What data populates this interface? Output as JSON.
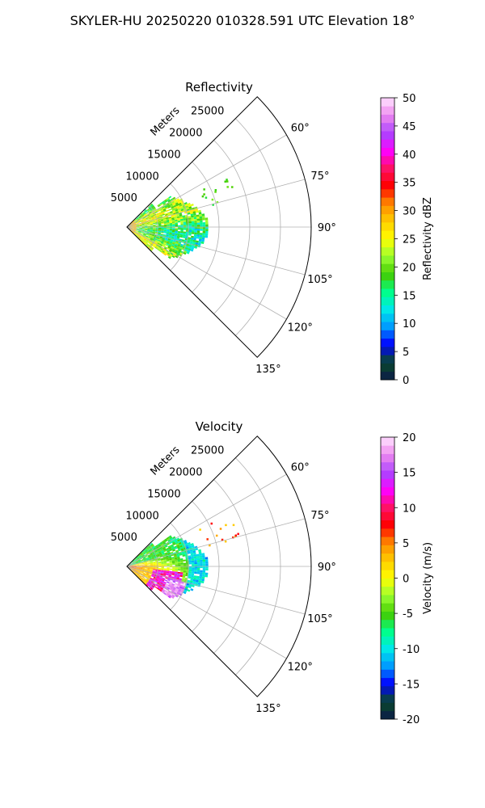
{
  "figure": {
    "suptitle": "SKYLER-HU  20250220  010328.591 UTC Elevation 18°"
  },
  "chart_data": [
    {
      "type": "heatmap",
      "subtype": "polar-sector",
      "title": "Reflectivity",
      "range_label": "Meters",
      "range_ticks": [
        5000,
        10000,
        15000,
        20000,
        25000
      ],
      "range_max": 30000,
      "azimuth_ticks": [
        "60°",
        "75°",
        "90°",
        "105°",
        "120°",
        "135°"
      ],
      "azimuth_range_deg": [
        45,
        135
      ],
      "colorbar": {
        "label": "Reflectivity dBZ",
        "ticks": [
          0,
          5,
          10,
          15,
          20,
          25,
          30,
          35,
          40,
          45,
          50
        ],
        "range": [
          0,
          50
        ]
      },
      "colormap": [
        "#0b1a4a",
        "#0a4a2a",
        "#0000ff",
        "#0099ff",
        "#00e8e8",
        "#00ff88",
        "#44cc00",
        "#99ff33",
        "#ffff00",
        "#ffcc00",
        "#ff8800",
        "#ff0000",
        "#ff1166",
        "#ff00ff",
        "#aa44ff",
        "#ee88ee",
        "#ffe4ff"
      ],
      "echo_extent_m": 12500
    },
    {
      "type": "heatmap",
      "subtype": "polar-sector",
      "title": "Velocity",
      "range_label": "Meters",
      "range_ticks": [
        5000,
        10000,
        15000,
        20000,
        25000
      ],
      "range_max": 30000,
      "azimuth_ticks": [
        "60°",
        "75°",
        "90°",
        "105°",
        "120°",
        "135°"
      ],
      "azimuth_range_deg": [
        45,
        135
      ],
      "colorbar": {
        "label": "Velocity (m/s)",
        "ticks": [
          -20,
          -15,
          -10,
          -5,
          0,
          5,
          10,
          15,
          20
        ],
        "range": [
          -20,
          20
        ]
      },
      "colormap": [
        "#0b1a4a",
        "#0a4a2a",
        "#0000ff",
        "#0099ff",
        "#00e8e8",
        "#00ff88",
        "#44cc00",
        "#99ff33",
        "#ffff00",
        "#ffcc00",
        "#ff8800",
        "#ff0000",
        "#ff1166",
        "#ff00ff",
        "#aa44ff",
        "#ee88ee",
        "#ffe4ff"
      ],
      "echo_extent_m": 12500
    }
  ]
}
